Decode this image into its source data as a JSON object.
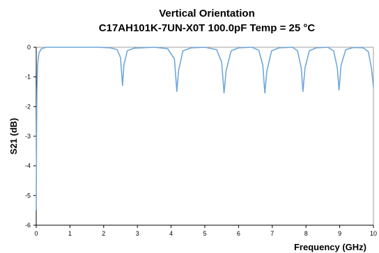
{
  "chart_data": {
    "type": "line",
    "title": "Vertical Orientation",
    "subtitle": "C17AH101K-7UN-X0T 100.0pF Temp = 25 °C",
    "xlabel": "Frequency (GHz)",
    "ylabel": "S21 (dB)",
    "xlim": [
      0,
      10
    ],
    "ylim": [
      -6,
      0
    ],
    "x_ticks": [
      "0",
      "1",
      "2",
      "3",
      "4",
      "5",
      "6",
      "7",
      "8",
      "9",
      "10"
    ],
    "y_ticks": [
      "0",
      "-1",
      "-2",
      "-3",
      "-4",
      "-5",
      "-6"
    ],
    "grid": false,
    "legend": "none",
    "series_color": "#6fa8dc",
    "series": [
      {
        "values": [
          [
            0.0,
            -5.5
          ],
          [
            0.01,
            -3.0
          ],
          [
            0.02,
            -1.5
          ],
          [
            0.04,
            -0.6
          ],
          [
            0.08,
            -0.2
          ],
          [
            0.15,
            -0.05
          ],
          [
            0.3,
            0.0
          ],
          [
            1.0,
            0.0
          ],
          [
            1.8,
            0.0
          ],
          [
            2.2,
            -0.02
          ],
          [
            2.4,
            -0.08
          ],
          [
            2.5,
            -0.35
          ],
          [
            2.56,
            -1.3
          ],
          [
            2.6,
            -0.6
          ],
          [
            2.7,
            -0.12
          ],
          [
            2.9,
            -0.03
          ],
          [
            3.5,
            0.0
          ],
          [
            3.9,
            -0.05
          ],
          [
            4.1,
            -0.4
          ],
          [
            4.17,
            -1.5
          ],
          [
            4.22,
            -0.8
          ],
          [
            4.35,
            -0.12
          ],
          [
            4.6,
            -0.02
          ],
          [
            5.0,
            0.0
          ],
          [
            5.35,
            -0.08
          ],
          [
            5.5,
            -0.5
          ],
          [
            5.57,
            -1.55
          ],
          [
            5.63,
            -0.8
          ],
          [
            5.78,
            -0.12
          ],
          [
            6.0,
            -0.02
          ],
          [
            6.4,
            0.0
          ],
          [
            6.6,
            -0.1
          ],
          [
            6.72,
            -0.6
          ],
          [
            6.78,
            -1.55
          ],
          [
            6.84,
            -0.8
          ],
          [
            6.98,
            -0.12
          ],
          [
            7.2,
            -0.02
          ],
          [
            7.6,
            0.0
          ],
          [
            7.75,
            -0.12
          ],
          [
            7.86,
            -0.7
          ],
          [
            7.91,
            -1.5
          ],
          [
            7.97,
            -0.7
          ],
          [
            8.1,
            -0.12
          ],
          [
            8.3,
            -0.02
          ],
          [
            8.65,
            0.0
          ],
          [
            8.82,
            -0.12
          ],
          [
            8.93,
            -0.7
          ],
          [
            8.98,
            -1.45
          ],
          [
            9.04,
            -0.6
          ],
          [
            9.18,
            -0.08
          ],
          [
            9.4,
            -0.01
          ],
          [
            9.7,
            -0.02
          ],
          [
            9.85,
            -0.15
          ],
          [
            9.94,
            -0.7
          ],
          [
            10.0,
            -1.35
          ]
        ]
      }
    ]
  }
}
